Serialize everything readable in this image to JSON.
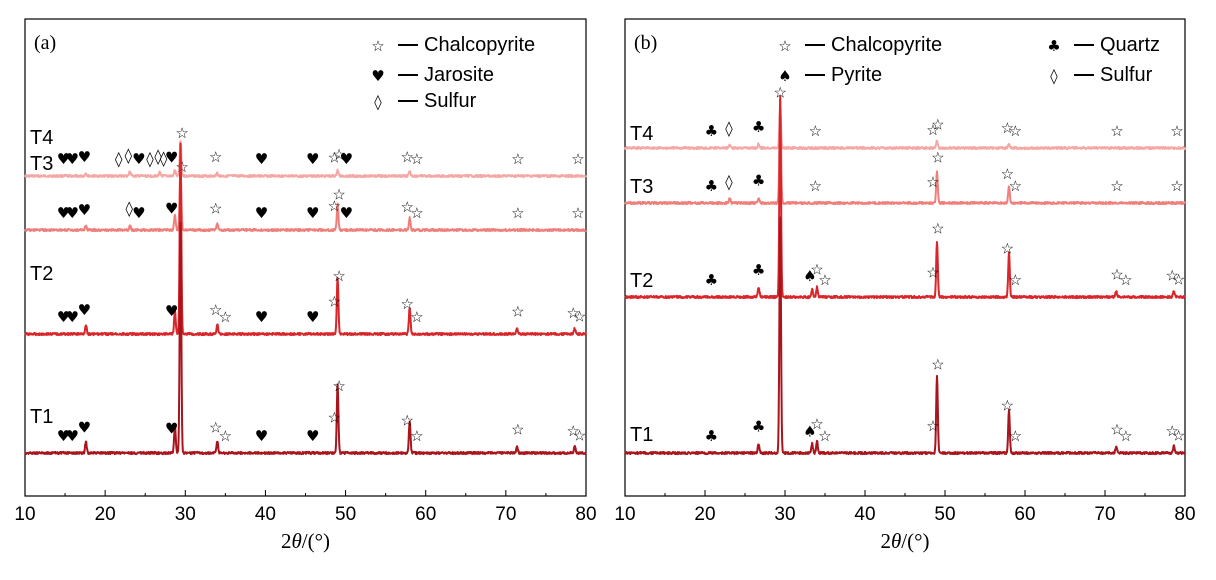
{
  "chart_data": [
    {
      "type": "line",
      "panel_label": "(a)",
      "xlabel_prefix": "2",
      "xlabel_theta": "θ",
      "xlabel_suffix": "/(°)",
      "xlim": [
        10,
        80
      ],
      "xticks": [
        10,
        20,
        30,
        40,
        50,
        60,
        70,
        80
      ],
      "legend": [
        {
          "marker": "☆",
          "label": "Chalcopyrite"
        },
        {
          "marker": "♥",
          "label": "Jarosite"
        },
        {
          "marker": "◊",
          "label": "Sulfur"
        }
      ],
      "series": [
        {
          "name": "T4",
          "color": "#f4a7a4",
          "peaks": [
            [
              17.6,
              0.05
            ],
            [
              23.1,
              0.08
            ],
            [
              26.8,
              0.06
            ],
            [
              28.7,
              0.1
            ],
            [
              29.4,
              0.6
            ],
            [
              34.0,
              0.05
            ],
            [
              49.0,
              0.1
            ],
            [
              58.0,
              0.07
            ]
          ],
          "markers": [
            [
              "♥",
              14.8
            ],
            [
              "♥",
              15.9
            ],
            [
              "♥",
              17.4
            ],
            [
              "◊",
              21.7
            ],
            [
              "◊",
              22.9
            ],
            [
              "♥",
              24.2
            ],
            [
              "◊",
              25.6
            ],
            [
              "◊",
              26.6
            ],
            [
              "◊",
              27.3
            ],
            [
              "♥",
              28.3
            ],
            [
              "☆",
              29.6
            ],
            [
              "☆",
              33.8
            ],
            [
              "♥",
              39.5
            ],
            [
              "♥",
              45.9
            ],
            [
              "☆",
              48.6
            ],
            [
              "☆",
              49.2
            ],
            [
              "♥",
              50.1
            ],
            [
              "☆",
              57.7
            ],
            [
              "☆",
              58.9
            ],
            [
              "☆",
              71.5
            ],
            [
              "☆",
              79.0
            ]
          ]
        },
        {
          "name": "T3",
          "color": "#ee7f7b",
          "peaks": [
            [
              17.6,
              0.05
            ],
            [
              23.1,
              0.06
            ],
            [
              28.7,
              0.2
            ],
            [
              29.4,
              0.8
            ],
            [
              34.0,
              0.08
            ],
            [
              49.0,
              0.32
            ],
            [
              58.0,
              0.15
            ]
          ],
          "markers": [
            [
              "♥",
              14.8
            ],
            [
              "♥",
              15.9
            ],
            [
              "♥",
              17.4
            ],
            [
              "◊",
              23.0
            ],
            [
              "♥",
              24.2
            ],
            [
              "♥",
              28.3
            ],
            [
              "☆",
              29.6
            ],
            [
              "☆",
              33.8
            ],
            [
              "♥",
              39.5
            ],
            [
              "♥",
              45.9
            ],
            [
              "☆",
              48.6
            ],
            [
              "☆",
              49.2
            ],
            [
              "♥",
              50.1
            ],
            [
              "☆",
              57.7
            ],
            [
              "☆",
              58.9
            ],
            [
              "☆",
              71.5
            ],
            [
              "☆",
              79.0
            ]
          ]
        },
        {
          "name": "T2",
          "color": "#d8262b",
          "peaks": [
            [
              17.6,
              0.05
            ],
            [
              28.7,
              0.12
            ],
            [
              29.4,
              1.0
            ],
            [
              34.0,
              0.05
            ],
            [
              49.0,
              0.3
            ],
            [
              58.0,
              0.14
            ],
            [
              71.4,
              0.03
            ],
            [
              78.6,
              0.03
            ]
          ],
          "markers": [
            [
              "♥",
              14.8
            ],
            [
              "♥",
              15.9
            ],
            [
              "♥",
              17.4
            ],
            [
              "♥",
              28.3
            ],
            [
              "☆",
              33.8
            ],
            [
              "☆",
              35.0
            ],
            [
              "♥",
              39.5
            ],
            [
              "♥",
              45.9
            ],
            [
              "☆",
              48.6
            ],
            [
              "☆",
              49.2
            ],
            [
              "☆",
              57.7
            ],
            [
              "☆",
              58.9
            ],
            [
              "☆",
              71.5
            ],
            [
              "☆",
              78.4
            ],
            [
              "☆",
              79.2
            ]
          ]
        },
        {
          "name": "T1",
          "color": "#a8151c",
          "peaks": [
            [
              17.6,
              0.05
            ],
            [
              28.7,
              0.12
            ],
            [
              29.4,
              1.0
            ],
            [
              34.0,
              0.05
            ],
            [
              49.0,
              0.3
            ],
            [
              58.0,
              0.14
            ],
            [
              71.4,
              0.03
            ],
            [
              78.6,
              0.03
            ]
          ],
          "markers": [
            [
              "♥",
              14.8
            ],
            [
              "♥",
              15.9
            ],
            [
              "♥",
              17.4
            ],
            [
              "♥",
              28.3
            ],
            [
              "☆",
              33.8
            ],
            [
              "☆",
              35.0
            ],
            [
              "♥",
              39.5
            ],
            [
              "♥",
              45.9
            ],
            [
              "☆",
              48.6
            ],
            [
              "☆",
              49.2
            ],
            [
              "☆",
              57.7
            ],
            [
              "☆",
              58.9
            ],
            [
              "☆",
              71.5
            ],
            [
              "☆",
              78.4
            ],
            [
              "☆",
              79.2
            ]
          ]
        }
      ]
    },
    {
      "type": "line",
      "panel_label": "(b)",
      "xlabel_prefix": "2",
      "xlabel_theta": "θ",
      "xlabel_suffix": "/(°)",
      "xlim": [
        10,
        80
      ],
      "xticks": [
        10,
        20,
        30,
        40,
        50,
        60,
        70,
        80
      ],
      "legend": [
        {
          "marker": "☆",
          "label": "Chalcopyrite"
        },
        {
          "marker": "♣",
          "label": "Quartz"
        },
        {
          "marker": "♠",
          "label": "Pyrite"
        },
        {
          "marker": "◊",
          "label": "Sulfur"
        }
      ],
      "series": [
        {
          "name": "T4",
          "color": "#f4a7a4",
          "peaks": [
            [
              23.1,
              0.04
            ],
            [
              26.7,
              0.06
            ],
            [
              29.4,
              0.55
            ],
            [
              49.0,
              0.1
            ],
            [
              58.0,
              0.06
            ]
          ],
          "markers": [
            [
              "♣",
              20.8
            ],
            [
              "◊",
              23.0
            ],
            [
              "♣",
              26.7
            ],
            [
              "☆",
              29.4
            ],
            [
              "☆",
              33.8
            ],
            [
              "☆",
              48.5
            ],
            [
              "☆",
              49.1
            ],
            [
              "☆",
              57.8
            ],
            [
              "☆",
              58.8
            ],
            [
              "☆",
              71.5
            ],
            [
              "☆",
              79.0
            ]
          ]
        },
        {
          "name": "T3",
          "color": "#ee7f7b",
          "peaks": [
            [
              23.1,
              0.04
            ],
            [
              26.7,
              0.05
            ],
            [
              29.4,
              0.95
            ],
            [
              49.0,
              0.28
            ],
            [
              58.0,
              0.15
            ]
          ],
          "markers": [
            [
              "♣",
              20.8
            ],
            [
              "◊",
              23.0
            ],
            [
              "♣",
              26.7
            ],
            [
              "☆",
              33.8
            ],
            [
              "☆",
              48.5
            ],
            [
              "☆",
              49.1
            ],
            [
              "☆",
              57.8
            ],
            [
              "☆",
              58.8
            ],
            [
              "☆",
              71.5
            ],
            [
              "☆",
              79.0
            ]
          ]
        },
        {
          "name": "T2",
          "color": "#d8262b",
          "peaks": [
            [
              26.7,
              0.05
            ],
            [
              29.4,
              1.0
            ],
            [
              33.4,
              0.04
            ],
            [
              34.0,
              0.05
            ],
            [
              49.0,
              0.28
            ],
            [
              58.0,
              0.22
            ],
            [
              71.4,
              0.03
            ],
            [
              78.6,
              0.03
            ]
          ],
          "markers": [
            [
              "♣",
              20.8
            ],
            [
              "♣",
              26.7
            ],
            [
              "♠",
              33.1
            ],
            [
              "☆",
              34.0
            ],
            [
              "☆",
              35.0
            ],
            [
              "☆",
              48.5
            ],
            [
              "☆",
              49.1
            ],
            [
              "☆",
              57.8
            ],
            [
              "☆",
              58.8
            ],
            [
              "☆",
              71.5
            ],
            [
              "☆",
              72.6
            ],
            [
              "☆",
              78.4
            ],
            [
              "☆",
              79.2
            ]
          ]
        },
        {
          "name": "T1",
          "color": "#a8151c",
          "peaks": [
            [
              26.7,
              0.04
            ],
            [
              29.4,
              1.0
            ],
            [
              33.4,
              0.04
            ],
            [
              34.0,
              0.05
            ],
            [
              49.0,
              0.33
            ],
            [
              58.0,
              0.18
            ],
            [
              71.4,
              0.03
            ],
            [
              78.6,
              0.03
            ]
          ],
          "markers": [
            [
              "♣",
              20.8
            ],
            [
              "♣",
              26.7
            ],
            [
              "♠",
              33.1
            ],
            [
              "☆",
              34.0
            ],
            [
              "☆",
              35.0
            ],
            [
              "☆",
              48.5
            ],
            [
              "☆",
              49.1
            ],
            [
              "☆",
              57.8
            ],
            [
              "☆",
              58.8
            ],
            [
              "☆",
              71.5
            ],
            [
              "☆",
              72.6
            ],
            [
              "☆",
              78.4
            ],
            [
              "☆",
              79.2
            ]
          ]
        }
      ]
    }
  ]
}
